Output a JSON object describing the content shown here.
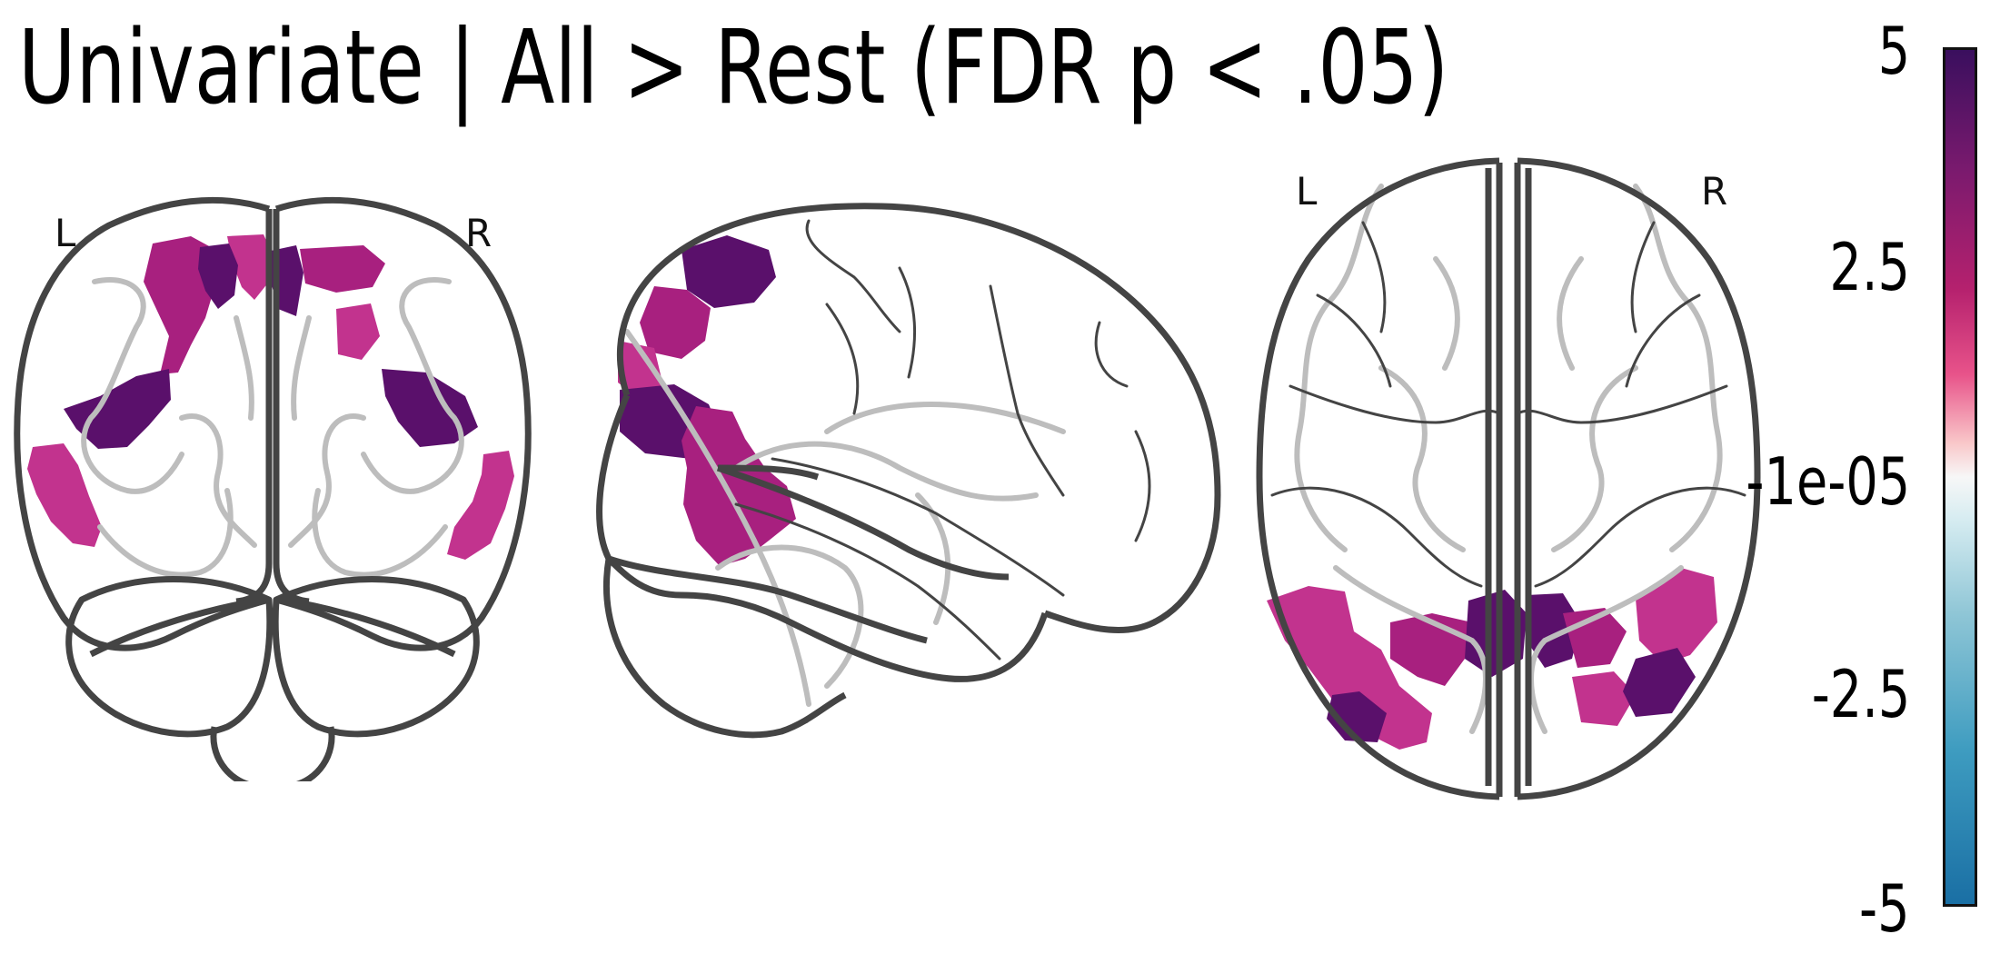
{
  "title": "Univariate | All > Rest (FDR p < .05)",
  "views": {
    "coronal": {
      "left_label": "L",
      "right_label": "R"
    },
    "sagittal": {},
    "axial": {
      "left_label": "L",
      "right_label": "R"
    }
  },
  "colorbar": {
    "ticks": [
      "5",
      "2.5",
      "-1e-05",
      "-2.5",
      "-5"
    ],
    "range": [
      -5,
      5
    ],
    "colors": {
      "max": "#3a0f5e",
      "high": "#b5216e",
      "mid": "#f7f7f7",
      "low": "#3e9cc0",
      "min": "#1a6fa4"
    }
  },
  "colors": {
    "outline": "#444444",
    "sulci": "#bdbdbd",
    "blob_dark": "#5a106b",
    "blob_mid": "#a8207f",
    "blob_light": "#c2338e"
  }
}
